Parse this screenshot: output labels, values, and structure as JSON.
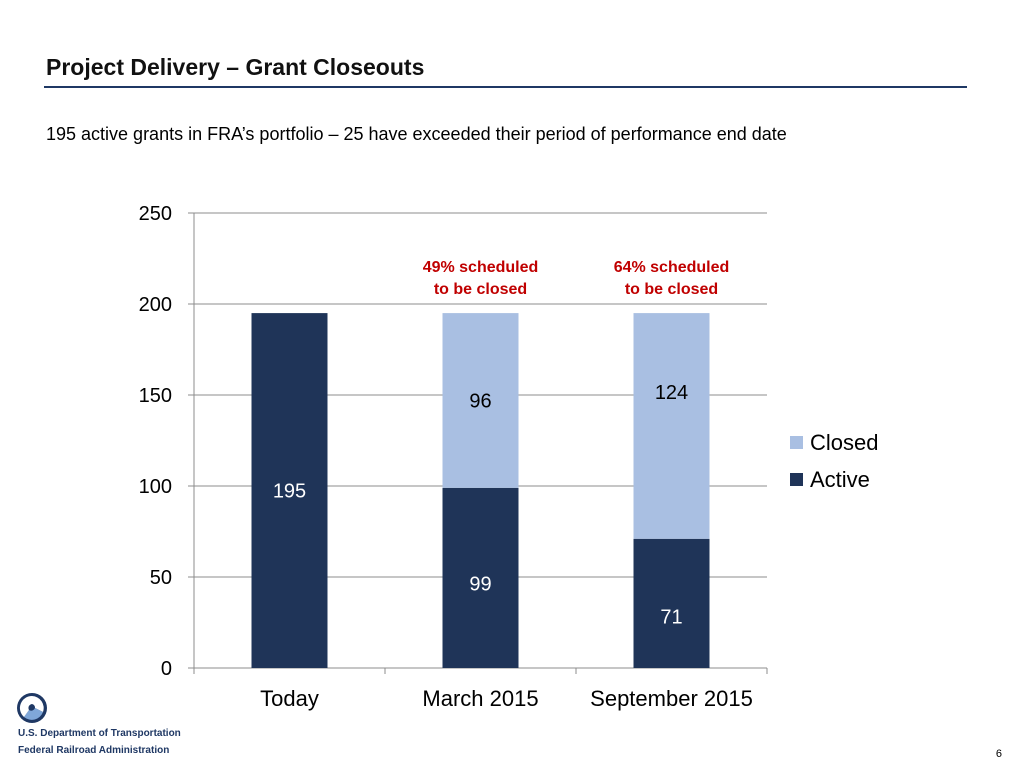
{
  "slide": {
    "title": "Project Delivery – Grant Closeouts",
    "subtitle": "195 active grants in FRA’s portfolio – 25 have exceeded their period of performance end date",
    "page_number": "6"
  },
  "footer": {
    "department": "U.S. Department of Transportation",
    "administration": "Federal Railroad Administration",
    "logo_icon": "dot-triskelion-logo-icon"
  },
  "chart_data": {
    "type": "bar",
    "stacked": true,
    "categories": [
      "Today",
      "March 2015",
      "September 2015"
    ],
    "series": [
      {
        "name": "Active",
        "values": [
          195,
          99,
          71
        ],
        "color": "#1f3458"
      },
      {
        "name": "Closed",
        "values": [
          0,
          96,
          124
        ],
        "color": "#a9bfe2"
      }
    ],
    "data_labels": [
      {
        "series": "Active",
        "labels": [
          "195",
          "99",
          "71"
        ]
      },
      {
        "series": "Closed",
        "labels": [
          "",
          "96",
          "124"
        ]
      }
    ],
    "annotations": [
      {
        "category": "March 2015",
        "lines": [
          "49% scheduled",
          "to be closed"
        ],
        "color": "#c00000"
      },
      {
        "category": "September 2015",
        "lines": [
          "64% scheduled",
          "to be closed"
        ],
        "color": "#c00000"
      }
    ],
    "ylim": [
      0,
      250
    ],
    "yticks": [
      0,
      50,
      100,
      150,
      200,
      250
    ],
    "grid": true,
    "legend": {
      "position": "right",
      "order": [
        "Closed",
        "Active"
      ]
    }
  }
}
